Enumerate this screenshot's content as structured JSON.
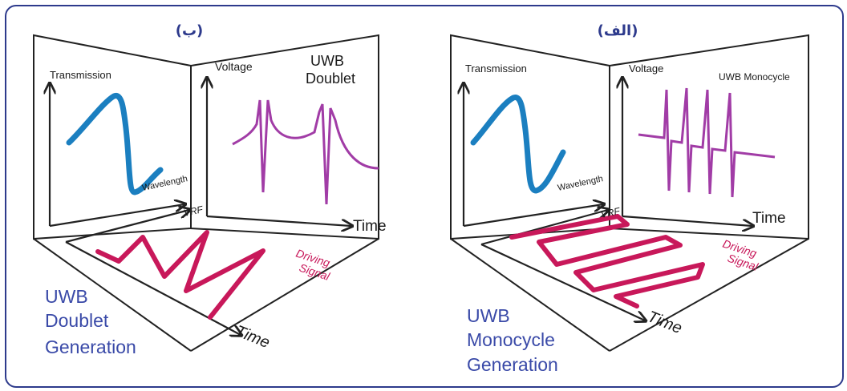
{
  "colors": {
    "border": "#2d3a8c",
    "transmission_curve": "#1b7fc0",
    "voltage_pulses": "#a13ca6",
    "driving_signal": "#c8185a",
    "generation_text": "#3a4aa8"
  },
  "panels": {
    "left": {
      "tag": "(ب)",
      "transmission_label": "Transmission",
      "wavelength_label": "Wavelength",
      "voltage_label": "Voltage",
      "pulse_label_line1": "UWB",
      "pulse_label_line2": "Doublet",
      "vrf_label": "VRF",
      "time_label_back": "Time",
      "driving_label_line1": "Driving",
      "driving_label_line2": "Signal",
      "time_label_floor": "Time",
      "generation_line1": "UWB",
      "generation_line2": "Doublet",
      "generation_line3": "Generation"
    },
    "right": {
      "tag": "(الف)",
      "transmission_label": "Transmission",
      "wavelength_label": "Wavelength",
      "voltage_label": "Voltage",
      "pulse_label": "UWB Monocycle",
      "vrf_label": "VRF",
      "time_label_back": "Time",
      "driving_label_line1": "Driving",
      "driving_label_line2": "Signal",
      "time_label_floor": "Time",
      "generation_line1": "UWB",
      "generation_line2": "Monocycle",
      "generation_line3": "Generation"
    }
  }
}
